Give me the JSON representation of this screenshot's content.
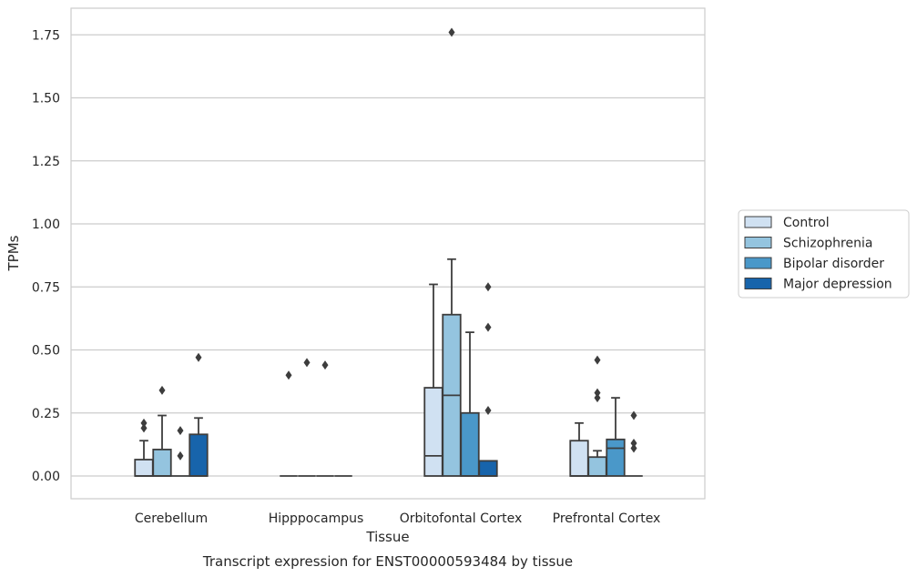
{
  "chart_data": {
    "type": "boxplot",
    "xlabel": "Tissue",
    "ylabel": "TPMs",
    "caption": "Transcript expression for ENST00000593484 by tissue",
    "ylim": [
      -0.085,
      1.85
    ],
    "yticks": [
      0.0,
      0.25,
      0.5,
      0.75,
      1.0,
      1.25,
      1.5,
      1.75
    ],
    "ytick_labels": [
      "0.00",
      "0.25",
      "0.50",
      "0.75",
      "1.00",
      "1.25",
      "1.50",
      "1.75"
    ],
    "grid": "horizontal",
    "legend_position": "right",
    "categories": [
      "Cerebellum",
      "Hipppocampus",
      "Orbitofontal Cortex",
      "Prefrontal Cortex"
    ],
    "series": [
      {
        "name": "Control",
        "color": "#d0e1f2",
        "boxes": [
          {
            "q1": 0.0,
            "median": 0.0,
            "q3": 0.065,
            "whislo": 0.0,
            "whishi": 0.14,
            "fliers": [
              0.19,
              0.21
            ]
          },
          {
            "q1": 0.0,
            "median": 0.0,
            "q3": 0.0,
            "whislo": 0.0,
            "whishi": 0.0,
            "fliers": [
              0.4
            ]
          },
          {
            "q1": 0.0,
            "median": 0.08,
            "q3": 0.35,
            "whislo": 0.0,
            "whishi": 0.76,
            "fliers": []
          },
          {
            "q1": 0.0,
            "median": 0.0,
            "q3": 0.14,
            "whislo": 0.0,
            "whishi": 0.21,
            "fliers": []
          }
        ]
      },
      {
        "name": "Schizophrenia",
        "color": "#94c4df",
        "boxes": [
          {
            "q1": 0.0,
            "median": 0.0,
            "q3": 0.105,
            "whislo": 0.0,
            "whishi": 0.24,
            "fliers": [
              0.34
            ]
          },
          {
            "q1": 0.0,
            "median": 0.0,
            "q3": 0.0,
            "whislo": 0.0,
            "whishi": 0.0,
            "fliers": [
              0.45
            ]
          },
          {
            "q1": 0.0,
            "median": 0.32,
            "q3": 0.64,
            "whislo": 0.0,
            "whishi": 0.86,
            "fliers": [
              1.76
            ]
          },
          {
            "q1": 0.0,
            "median": 0.0,
            "q3": 0.075,
            "whislo": 0.0,
            "whishi": 0.1,
            "fliers": [
              0.31,
              0.33,
              0.46
            ]
          }
        ]
      },
      {
        "name": "Bipolar disorder",
        "color": "#4a98c9",
        "boxes": [
          {
            "q1": 0.0,
            "median": 0.0,
            "q3": 0.0,
            "whislo": 0.0,
            "whishi": 0.0,
            "fliers": [
              0.08,
              0.18
            ]
          },
          {
            "q1": 0.0,
            "median": 0.0,
            "q3": 0.0,
            "whislo": 0.0,
            "whishi": 0.0,
            "fliers": [
              0.44
            ]
          },
          {
            "q1": 0.0,
            "median": 0.0,
            "q3": 0.25,
            "whislo": 0.0,
            "whishi": 0.57,
            "fliers": []
          },
          {
            "q1": 0.0,
            "median": 0.11,
            "q3": 0.145,
            "whislo": 0.0,
            "whishi": 0.31,
            "fliers": []
          }
        ]
      },
      {
        "name": "Major depression",
        "color": "#1764ab",
        "boxes": [
          {
            "q1": 0.0,
            "median": 0.0,
            "q3": 0.165,
            "whislo": 0.0,
            "whishi": 0.23,
            "fliers": [
              0.47
            ]
          },
          {
            "q1": 0.0,
            "median": 0.0,
            "q3": 0.0,
            "whislo": 0.0,
            "whishi": 0.0,
            "fliers": []
          },
          {
            "q1": 0.0,
            "median": 0.0,
            "q3": 0.06,
            "whislo": 0.0,
            "whishi": 0.06,
            "fliers": [
              0.26,
              0.59,
              0.75
            ]
          },
          {
            "q1": 0.0,
            "median": 0.0,
            "q3": 0.0,
            "whislo": 0.0,
            "whishi": 0.0,
            "fliers": [
              0.11,
              0.13,
              0.24
            ]
          }
        ]
      }
    ]
  }
}
